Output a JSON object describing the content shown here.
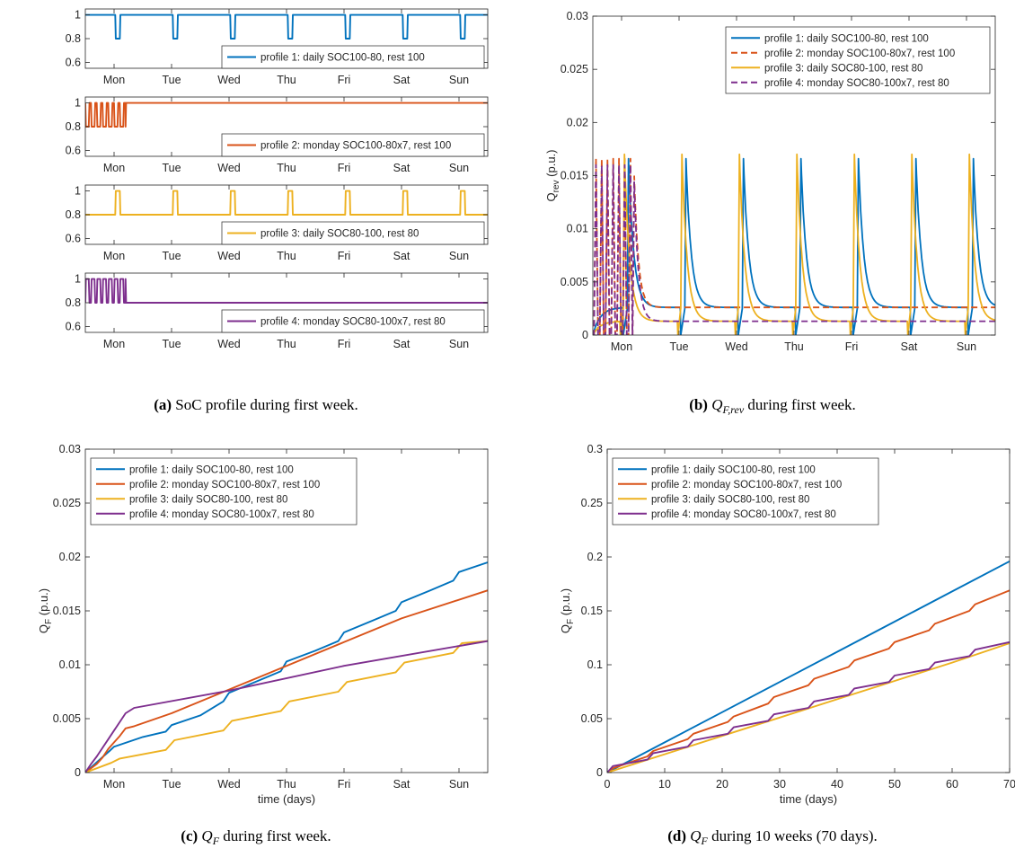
{
  "colors": {
    "p1": "#0072BD",
    "p2": "#D95319",
    "p3": "#EDB120",
    "p4": "#7E2F8E",
    "axis": "#262626"
  },
  "captions": {
    "a": {
      "letter": "(a)",
      "text": " SoC profile during first week."
    },
    "b": {
      "letter": "(b)",
      "math": "Q",
      "sub": "F,rev",
      "text": " during first week."
    },
    "c": {
      "letter": "(c)",
      "math": "Q",
      "sub": "F",
      "text": " during first week."
    },
    "d": {
      "letter": "(d)",
      "math": "Q",
      "sub": "F",
      "text": " during 10 weeks (70 days)."
    }
  },
  "chart_data": [
    {
      "id": "a",
      "type": "line",
      "subplots": [
        {
          "name": "profile 1: daily SOC100-80, rest 100",
          "color_key": "p1",
          "base": 1.0,
          "dip": 0.8,
          "pattern": "daily",
          "ylim": [
            0.55,
            1.05
          ],
          "yticks": [
            0.6,
            0.8,
            1
          ],
          "legend": "bottom-right"
        },
        {
          "name": "profile 2: monday SOC100-80x7, rest 100",
          "color_key": "p2",
          "base": 1.0,
          "dip": 0.8,
          "pattern": "monday",
          "ylim": [
            0.55,
            1.05
          ],
          "yticks": [
            0.6,
            0.8,
            1
          ],
          "legend": "bottom-right"
        },
        {
          "name": "profile 3: daily SOC80-100, rest 80",
          "color_key": "p3",
          "base": 0.8,
          "dip": 1.0,
          "pattern": "daily",
          "ylim": [
            0.55,
            1.05
          ],
          "yticks": [
            0.6,
            0.8,
            1
          ],
          "legend": "bottom-right"
        },
        {
          "name": "profile 4: monday SOC80-100x7, rest 80",
          "color_key": "p4",
          "base": 0.8,
          "dip": 1.0,
          "pattern": "monday",
          "ylim": [
            0.55,
            1.05
          ],
          "yticks": [
            0.6,
            0.8,
            1
          ],
          "legend": "bottom-right"
        }
      ],
      "xlim": [
        0,
        7
      ],
      "x_tick_positions": [
        0.5,
        1.5,
        2.5,
        3.5,
        4.5,
        5.5,
        6.5
      ],
      "x_tick_labels": [
        "Mon",
        "Tue",
        "Wed",
        "Thu",
        "Fri",
        "Sat",
        "Sun"
      ]
    },
    {
      "id": "b",
      "type": "line",
      "ylabel": "Q",
      "ylabel_sub": "rev",
      "ylabel_unit": " (p.u.)",
      "xlim": [
        0,
        7
      ],
      "ylim": [
        0,
        0.03
      ],
      "yticks": [
        0,
        0.005,
        0.01,
        0.015,
        0.02,
        0.025,
        0.03
      ],
      "ytick_labels": [
        "0",
        "0.005",
        "0.01",
        "0.015",
        "0.02",
        "0.025",
        "0.03"
      ],
      "x_tick_positions": [
        0.5,
        1.5,
        2.5,
        3.5,
        4.5,
        5.5,
        6.5
      ],
      "x_tick_labels": [
        "Mon",
        "Tue",
        "Wed",
        "Thu",
        "Fri",
        "Sat",
        "Sun"
      ],
      "legend": "top-right",
      "series": [
        {
          "name": "profile 1: daily SOC100-80, rest 100",
          "color_key": "p1",
          "dash": false,
          "kind": "daily",
          "peak": 0.0166,
          "floor": 0.0026
        },
        {
          "name": "profile 2: monday SOC100-80x7, rest 100",
          "color_key": "p2",
          "dash": true,
          "kind": "monday",
          "peak": 0.0166,
          "floor": 0.0026
        },
        {
          "name": "profile 3: daily SOC80-100, rest 80",
          "color_key": "p3",
          "dash": false,
          "kind": "daily",
          "peak": 0.017,
          "floor": 0.0013
        },
        {
          "name": "profile 4: monday SOC80-100x7, rest 80",
          "color_key": "p4",
          "dash": true,
          "kind": "monday",
          "peak": 0.016,
          "floor": 0.0013
        }
      ]
    },
    {
      "id": "c",
      "type": "line",
      "ylabel": "Q",
      "ylabel_sub": "F",
      "ylabel_unit": " (p.u.)",
      "xlabel": "time (days)",
      "xlim": [
        0,
        7
      ],
      "ylim": [
        0,
        0.03
      ],
      "yticks": [
        0,
        0.005,
        0.01,
        0.015,
        0.02,
        0.025,
        0.03
      ],
      "ytick_labels": [
        "0",
        "0.005",
        "0.01",
        "0.015",
        "0.02",
        "0.025",
        "0.03"
      ],
      "x_tick_positions": [
        0.5,
        1.5,
        2.5,
        3.5,
        4.5,
        5.5,
        6.5
      ],
      "x_tick_labels": [
        "Mon",
        "Tue",
        "Wed",
        "Thu",
        "Fri",
        "Sat",
        "Sun"
      ],
      "legend": "top-left",
      "series": [
        {
          "name": "profile 1: daily SOC100-80, rest 100",
          "color_key": "p1",
          "points": [
            [
              0,
              0
            ],
            [
              0.25,
              0.0012
            ],
            [
              0.42,
              0.002
            ],
            [
              0.5,
              0.0024
            ],
            [
              1.0,
              0.0033
            ],
            [
              1.4,
              0.0038
            ],
            [
              1.5,
              0.0044
            ],
            [
              2.0,
              0.0053
            ],
            [
              2.4,
              0.0066
            ],
            [
              2.5,
              0.0074
            ],
            [
              3.0,
              0.0085
            ],
            [
              3.4,
              0.0094
            ],
            [
              3.5,
              0.0103
            ],
            [
              4.0,
              0.0113
            ],
            [
              4.4,
              0.0122
            ],
            [
              4.5,
              0.013
            ],
            [
              5.0,
              0.0141
            ],
            [
              5.4,
              0.015
            ],
            [
              5.5,
              0.0158
            ],
            [
              6.0,
              0.0169
            ],
            [
              6.4,
              0.0178
            ],
            [
              6.5,
              0.0186
            ],
            [
              7.0,
              0.0195
            ]
          ]
        },
        {
          "name": "profile 2: monday SOC100-80x7, rest 100",
          "color_key": "p2",
          "points": [
            [
              0,
              0
            ],
            [
              0.1,
              0.0004
            ],
            [
              0.2,
              0.0008
            ],
            [
              0.3,
              0.0014
            ],
            [
              0.4,
              0.0022
            ],
            [
              0.5,
              0.0028
            ],
            [
              0.6,
              0.0034
            ],
            [
              0.7,
              0.0041
            ],
            [
              0.85,
              0.0043
            ],
            [
              1.5,
              0.0055
            ],
            [
              2.5,
              0.0077
            ],
            [
              3.5,
              0.0099
            ],
            [
              4.5,
              0.0121
            ],
            [
              5.5,
              0.0143
            ],
            [
              7.0,
              0.0169
            ]
          ]
        },
        {
          "name": "profile 3: daily SOC80-100, rest 80",
          "color_key": "p3",
          "points": [
            [
              0,
              0
            ],
            [
              0.45,
              0.0009
            ],
            [
              0.6,
              0.0013
            ],
            [
              1.4,
              0.0021
            ],
            [
              1.55,
              0.003
            ],
            [
              2.4,
              0.0039
            ],
            [
              2.55,
              0.0048
            ],
            [
              3.4,
              0.0057
            ],
            [
              3.55,
              0.0066
            ],
            [
              4.4,
              0.0075
            ],
            [
              4.55,
              0.0084
            ],
            [
              5.4,
              0.0093
            ],
            [
              5.55,
              0.0102
            ],
            [
              6.4,
              0.0111
            ],
            [
              6.55,
              0.012
            ],
            [
              7.0,
              0.0122
            ]
          ]
        },
        {
          "name": "profile 4: monday SOC80-100x7, rest 80",
          "color_key": "p4",
          "points": [
            [
              0,
              0
            ],
            [
              0.1,
              0.0008
            ],
            [
              0.2,
              0.0015
            ],
            [
              0.3,
              0.0023
            ],
            [
              0.4,
              0.0031
            ],
            [
              0.5,
              0.0039
            ],
            [
              0.6,
              0.0047
            ],
            [
              0.7,
              0.0055
            ],
            [
              0.85,
              0.006
            ],
            [
              2.5,
              0.0076
            ],
            [
              4.5,
              0.0099
            ],
            [
              7.0,
              0.0122
            ]
          ]
        }
      ]
    },
    {
      "id": "d",
      "type": "line",
      "ylabel": "Q",
      "ylabel_sub": "F",
      "ylabel_unit": " (p.u.)",
      "xlabel": "time (days)",
      "xlim": [
        0,
        70
      ],
      "ylim": [
        0,
        0.3
      ],
      "yticks": [
        0,
        0.05,
        0.1,
        0.15,
        0.2,
        0.25,
        0.3
      ],
      "ytick_labels": [
        "0",
        "0.05",
        "0.1",
        "0.15",
        "0.2",
        "0.25",
        "0.3"
      ],
      "xticks": [
        0,
        10,
        20,
        30,
        40,
        50,
        60,
        70
      ],
      "xtick_labels": [
        "0",
        "10",
        "20",
        "30",
        "40",
        "50",
        "60",
        "70"
      ],
      "legend": "top-left",
      "series": [
        {
          "name": "profile 1: daily SOC100-80, rest 100",
          "color_key": "p1",
          "points": [
            [
              0,
              0
            ],
            [
              10,
              0.028
            ],
            [
              20,
              0.056
            ],
            [
              30,
              0.084
            ],
            [
              40,
              0.112
            ],
            [
              50,
              0.14
            ],
            [
              60,
              0.168
            ],
            [
              70,
              0.196
            ]
          ]
        },
        {
          "name": "profile 2: monday SOC100-80x7, rest 100",
          "color_key": "p2",
          "points": [
            [
              0,
              0
            ],
            [
              1,
              0.004
            ],
            [
              7,
              0.015
            ],
            [
              8,
              0.02
            ],
            [
              14,
              0.031
            ],
            [
              15,
              0.036
            ],
            [
              21,
              0.047
            ],
            [
              22,
              0.052
            ],
            [
              28,
              0.064
            ],
            [
              29,
              0.07
            ],
            [
              35,
              0.081
            ],
            [
              36,
              0.087
            ],
            [
              42,
              0.098
            ],
            [
              43,
              0.104
            ],
            [
              49,
              0.115
            ],
            [
              50,
              0.121
            ],
            [
              56,
              0.132
            ],
            [
              57,
              0.138
            ],
            [
              63,
              0.15
            ],
            [
              64,
              0.156
            ],
            [
              70,
              0.169
            ]
          ]
        },
        {
          "name": "profile 3: daily SOC80-100, rest 80",
          "color_key": "p3",
          "points": [
            [
              0,
              0
            ],
            [
              10,
              0.017
            ],
            [
              20,
              0.034
            ],
            [
              30,
              0.051
            ],
            [
              40,
              0.068
            ],
            [
              50,
              0.085
            ],
            [
              60,
              0.102
            ],
            [
              70,
              0.12
            ]
          ]
        },
        {
          "name": "profile 4: monday SOC80-100x7, rest 80",
          "color_key": "p4",
          "points": [
            [
              0,
              0
            ],
            [
              1,
              0.006
            ],
            [
              7,
              0.012
            ],
            [
              8,
              0.018
            ],
            [
              14,
              0.024
            ],
            [
              15,
              0.03
            ],
            [
              21,
              0.036
            ],
            [
              22,
              0.042
            ],
            [
              28,
              0.048
            ],
            [
              29,
              0.054
            ],
            [
              35,
              0.06
            ],
            [
              36,
              0.066
            ],
            [
              42,
              0.072
            ],
            [
              43,
              0.078
            ],
            [
              49,
              0.084
            ],
            [
              50,
              0.09
            ],
            [
              56,
              0.096
            ],
            [
              57,
              0.102
            ],
            [
              63,
              0.108
            ],
            [
              64,
              0.114
            ],
            [
              70,
              0.121
            ]
          ]
        }
      ]
    }
  ]
}
